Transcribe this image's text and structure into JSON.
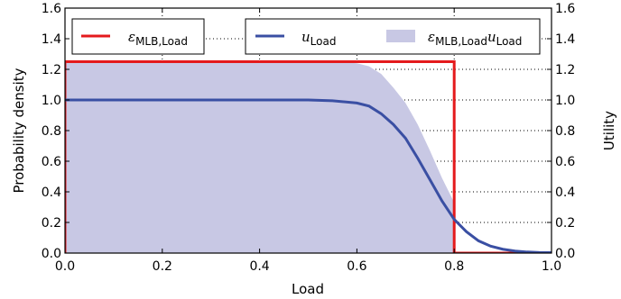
{
  "chart_data": {
    "type": "line",
    "xlabel": "Load",
    "ylabel_left": "Probability density",
    "ylabel_right": "Utility",
    "xlim": [
      0.0,
      1.0
    ],
    "ylim": [
      0.0,
      1.6
    ],
    "x_ticks": [
      "0.0",
      "0.2",
      "0.4",
      "0.6",
      "0.8",
      "1.0"
    ],
    "y_ticks": [
      "0.0",
      "0.2",
      "0.4",
      "0.6",
      "0.8",
      "1.0",
      "1.2",
      "1.4",
      "1.6"
    ],
    "grid": true,
    "legend_placement": "top",
    "series": [
      {
        "name": "εMLB,Load",
        "color": "#e41a1c",
        "style": "step",
        "x": [
          0.0,
          0.0,
          0.8,
          0.8,
          1.0
        ],
        "y": [
          0.0,
          1.25,
          1.25,
          0.0,
          0.0
        ]
      },
      {
        "name": "uLoad",
        "color": "#3a4fa3",
        "style": "line",
        "x": [
          0.0,
          0.5,
          0.55,
          0.6,
          0.625,
          0.65,
          0.675,
          0.7,
          0.725,
          0.75,
          0.775,
          0.8,
          0.825,
          0.85,
          0.875,
          0.9,
          0.925,
          0.95,
          0.975,
          1.0
        ],
        "y": [
          1.0,
          1.0,
          0.995,
          0.98,
          0.96,
          0.91,
          0.84,
          0.75,
          0.62,
          0.48,
          0.34,
          0.22,
          0.14,
          0.08,
          0.045,
          0.025,
          0.013,
          0.007,
          0.004,
          0.003
        ]
      },
      {
        "name": "εMLB,LoaduLoad",
        "color": "#c8c8e4",
        "style": "area",
        "x": [
          0.0,
          0.55,
          0.6,
          0.625,
          0.65,
          0.675,
          0.7,
          0.725,
          0.75,
          0.775,
          0.8,
          0.8
        ],
        "y": [
          1.25,
          1.25,
          1.24,
          1.22,
          1.17,
          1.08,
          0.98,
          0.84,
          0.67,
          0.49,
          0.33,
          0.0
        ]
      }
    ]
  },
  "legend": {
    "eps_symbol": "ε",
    "eps_sub": "MLB,Load",
    "u_symbol": "u",
    "u_sub": "Load",
    "prod_eps_symbol": "ε",
    "prod_eps_sub": "MLB,Load",
    "prod_u_symbol": "u",
    "prod_u_sub": "Load"
  }
}
